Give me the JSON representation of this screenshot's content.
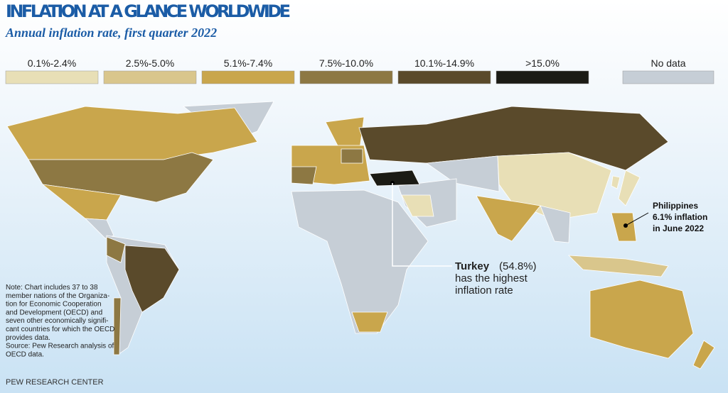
{
  "header": {
    "title": "INFLATION AT A GLANCE WORLDWIDE",
    "subtitle": "Annual inflation rate, first quarter 2022"
  },
  "legend": [
    {
      "label": "0.1%-2.4%",
      "color": "#e8dfb6"
    },
    {
      "label": "2.5%-5.0%",
      "color": "#d9c68c"
    },
    {
      "label": "5.1%-7.4%",
      "color": "#c9a64c"
    },
    {
      "label": "7.5%-10.0%",
      "color": "#8d7843"
    },
    {
      "label": "10.1%-14.9%",
      "color": "#5a4a2b"
    },
    {
      "label": ">15.0%",
      "color": "#1b1b15"
    },
    {
      "label": "No data",
      "color": "#c6ced6"
    }
  ],
  "annotations": {
    "turkey": {
      "name": "Turkey",
      "value": "(54.8%)",
      "lines": [
        "has the highest",
        "inflation rate"
      ]
    },
    "philippines": [
      "Philippines",
      "6.1% inflation",
      "in June 2022"
    ]
  },
  "note": [
    "Note: Chart includes 37 to 38",
    "member nations of the Organiza-",
    "tion for Economic Cooperation",
    "and Development (OECD) and",
    "seven other economically signifi-",
    "cant countries for which the OECD",
    "provides data.",
    "Source: Pew Research analysis of",
    "OECD data."
  ],
  "footer": "PEW RESEARCH CENTER"
}
